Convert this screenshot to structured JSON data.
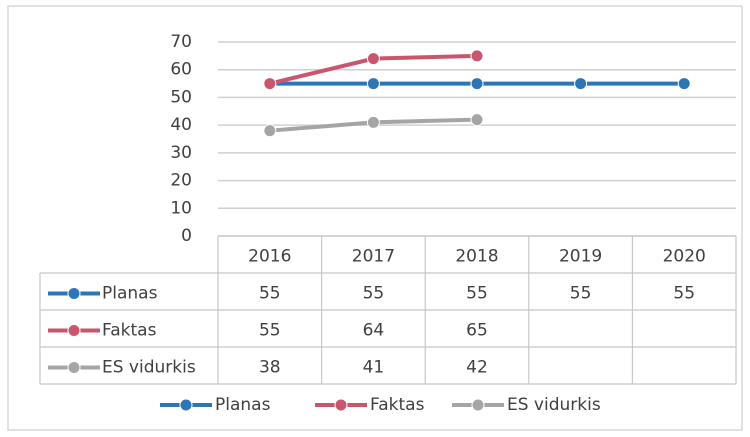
{
  "chart_data": {
    "type": "line",
    "categories": [
      "2016",
      "2017",
      "2018",
      "2019",
      "2020"
    ],
    "series": [
      {
        "name": "Planas",
        "color": "#2e75b6",
        "values": [
          55,
          55,
          55,
          55,
          55
        ]
      },
      {
        "name": "Faktas",
        "color": "#c9566e",
        "values": [
          55,
          64,
          65,
          null,
          null
        ]
      },
      {
        "name": "ES vidurkis",
        "color": "#a5a5a5",
        "values": [
          38,
          41,
          42,
          null,
          null
        ]
      }
    ],
    "ylim": [
      0,
      70
    ],
    "yticks": [
      0,
      10,
      20,
      30,
      40,
      50,
      60,
      70
    ],
    "grid": true,
    "legend": "bottom"
  }
}
